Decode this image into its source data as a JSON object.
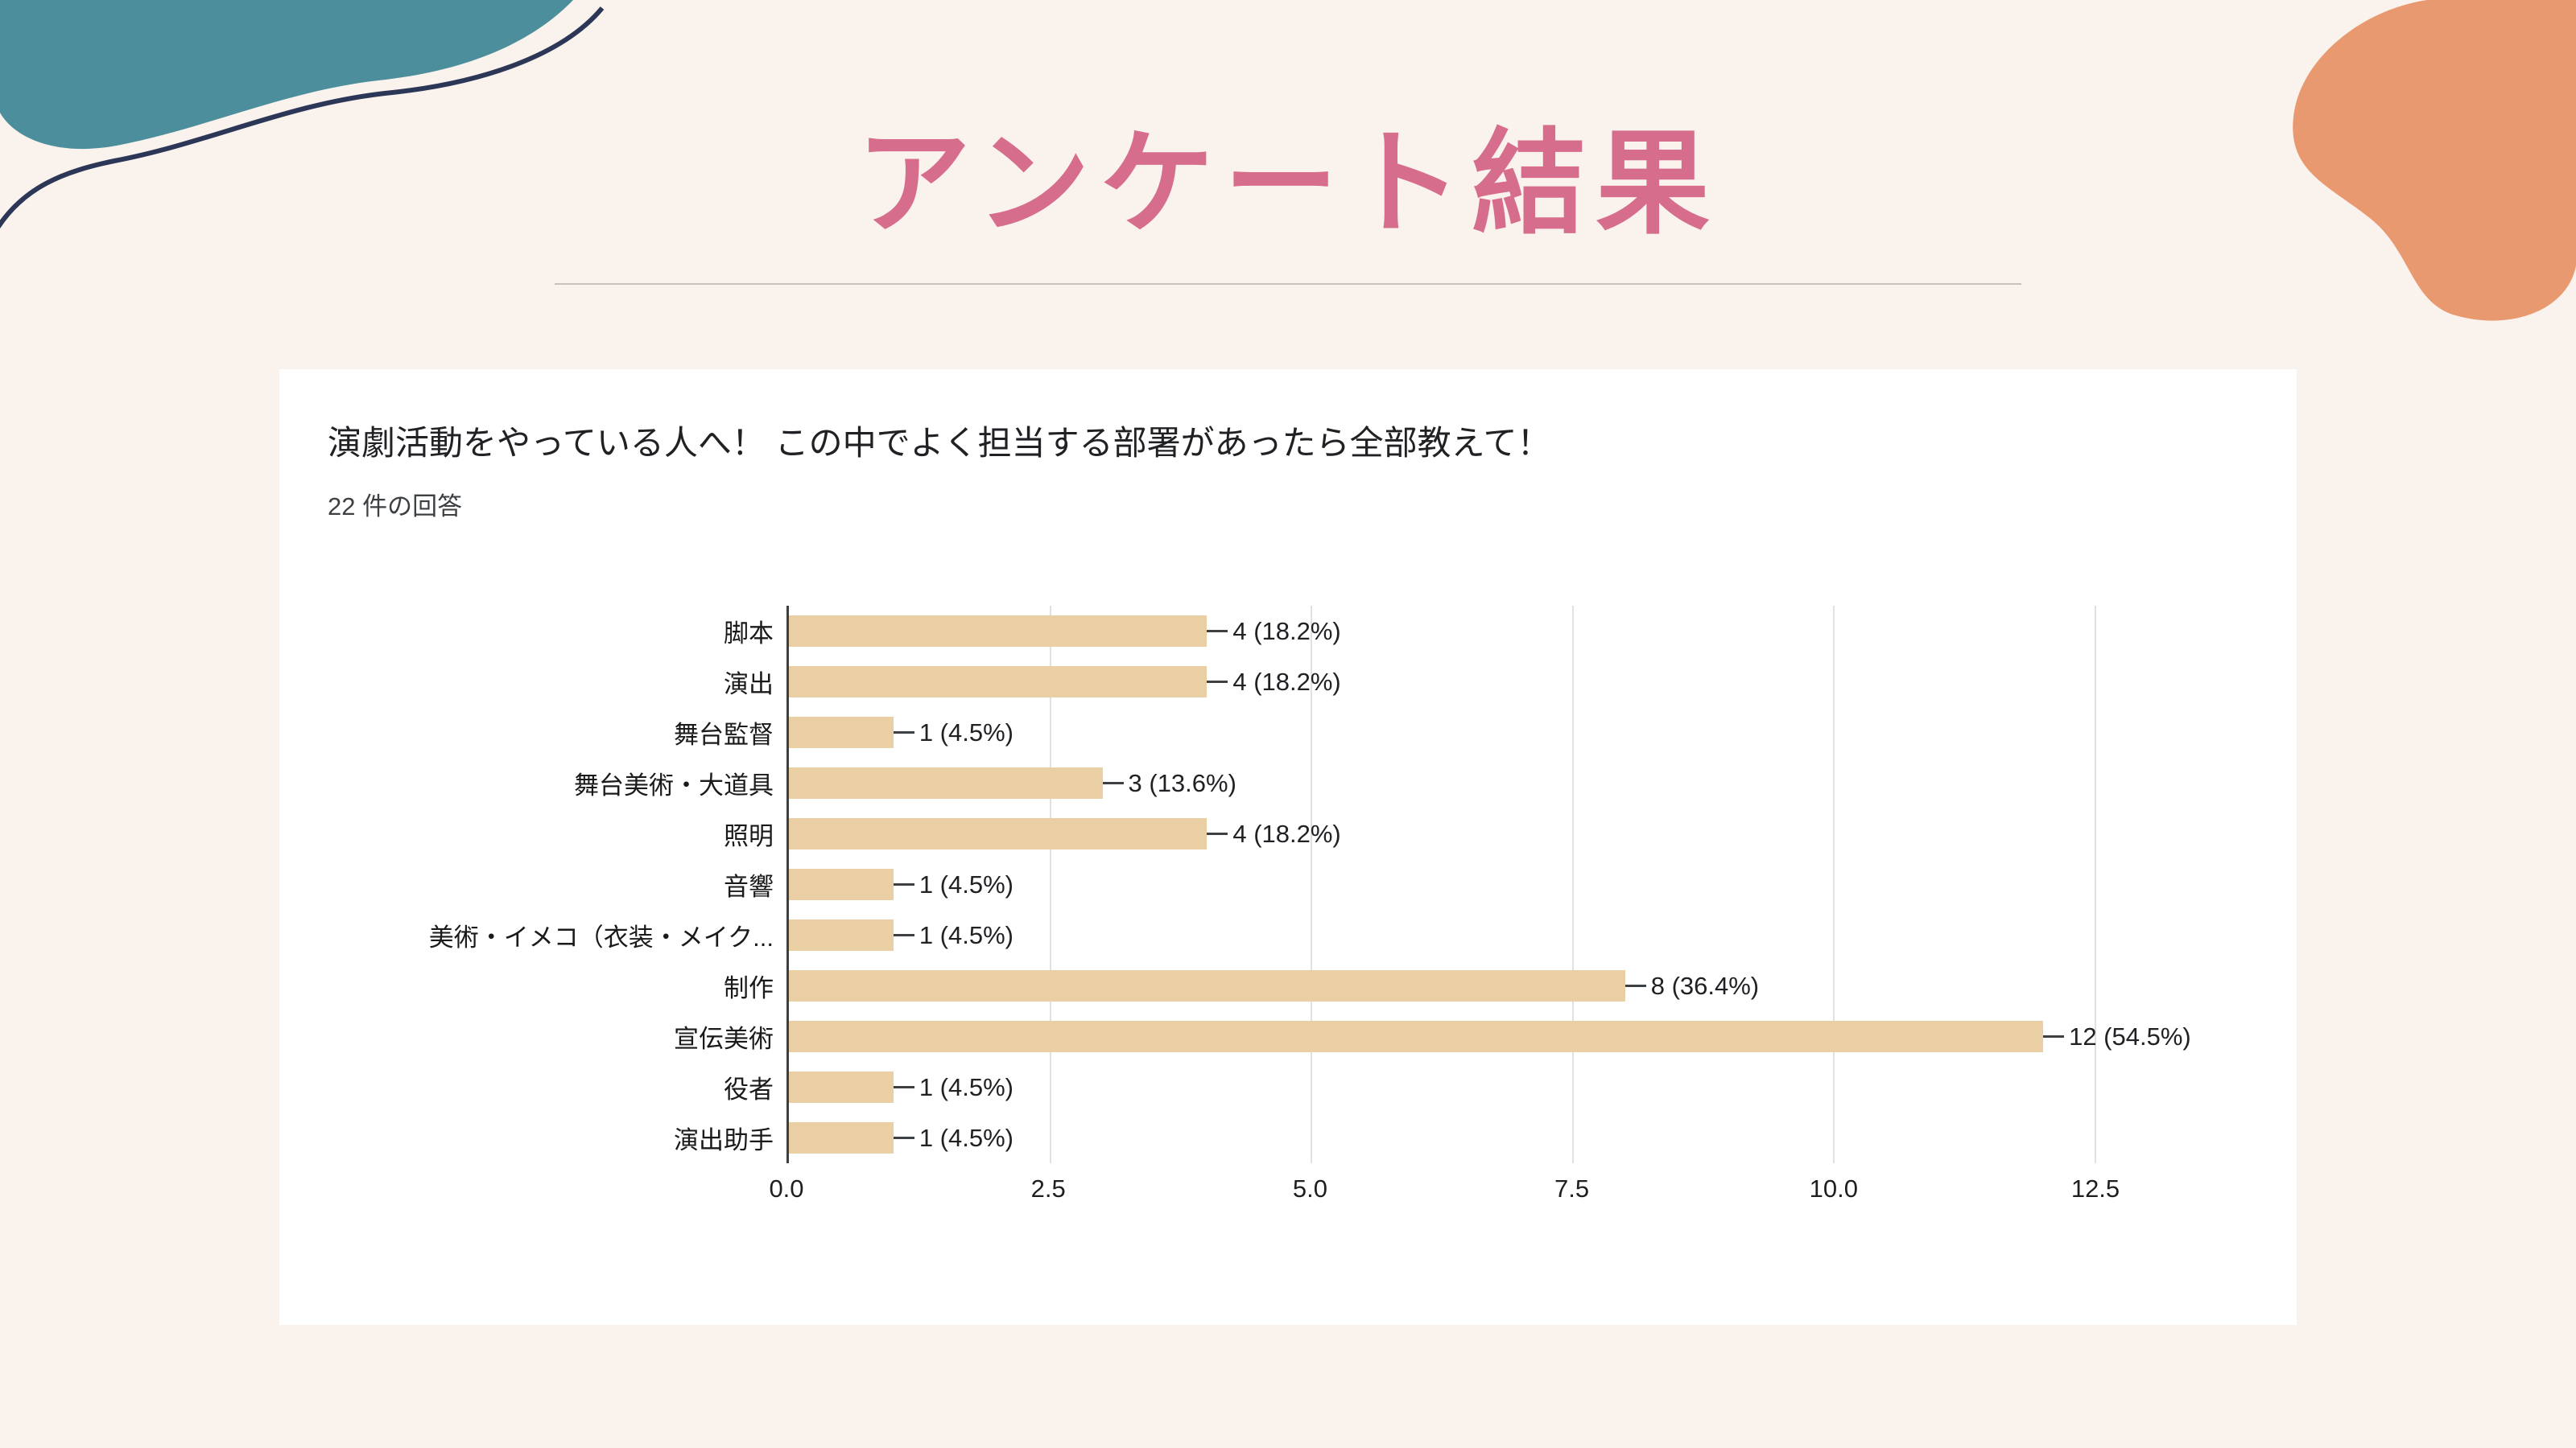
{
  "page": {
    "title": "アンケート結果",
    "colors": {
      "background": "#faf2ec",
      "title": "#d66d8c",
      "card": "#ffffff",
      "blob_teal": "#4d8e9c",
      "blob_outline_navy": "#2c3757",
      "blob_salmon": "#e9996f",
      "bar": "#e9cfa3"
    }
  },
  "chart_data": {
    "type": "bar",
    "orientation": "horizontal",
    "title": "演劇活動をやっている人へ！ この中でよく担当する部署があったら全部教えて！",
    "subtitle": "22 件の回答",
    "categories": [
      "脚本",
      "演出",
      "舞台監督",
      "舞台美術・大道具",
      "照明",
      "音響",
      "美術・イメコ（衣装・メイク...",
      "制作",
      "宣伝美術",
      "役者",
      "演出助手"
    ],
    "values": [
      4,
      4,
      1,
      3,
      4,
      1,
      1,
      8,
      12,
      1,
      1
    ],
    "labels": [
      "4 (18.2%)",
      "4 (18.2%)",
      "1 (4.5%)",
      "3 (13.6%)",
      "4 (18.2%)",
      "1 (4.5%)",
      "1 (4.5%)",
      "8 (36.4%)",
      "12 (54.5%)",
      "1 (4.5%)",
      "1 (4.5%)"
    ],
    "x_ticks": [
      "0.0",
      "2.5",
      "5.0",
      "7.5",
      "10.0",
      "12.5"
    ],
    "xlim": [
      0,
      12.5
    ],
    "xlabel": "",
    "ylabel": "",
    "grid": true,
    "legend": "none",
    "bar_color": "#e9cfa3",
    "total_responses": 22
  }
}
